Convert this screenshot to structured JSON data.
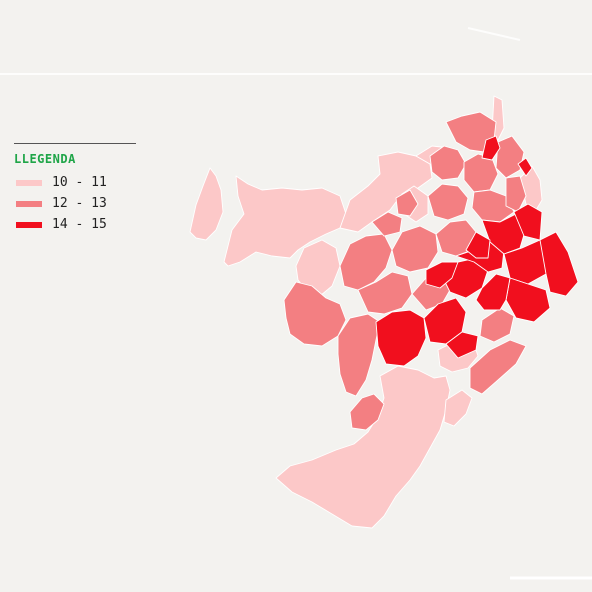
{
  "legend": {
    "title": "LLEGENDA",
    "items": [
      {
        "label": "10 - 11",
        "color": "#fcc8c8"
      },
      {
        "label": "12 - 13",
        "color": "#f37f82"
      },
      {
        "label": "14 - 15",
        "color": "#f10f1e"
      }
    ]
  },
  "map": {
    "background": "#f3f2ef",
    "border": "#ffffff"
  }
}
